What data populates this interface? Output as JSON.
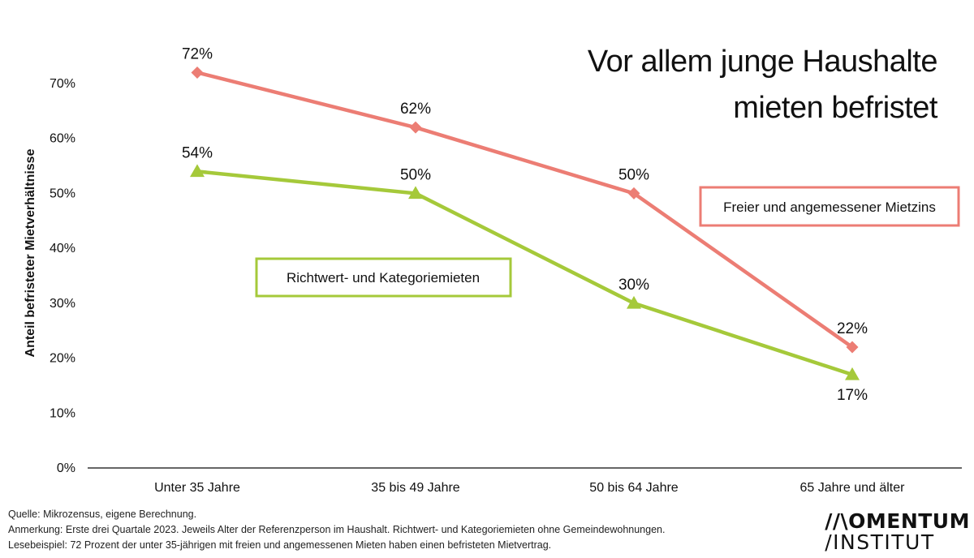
{
  "chart_data": {
    "type": "line",
    "title_lines": [
      "Vor allem junge Haushalte",
      "mieten befristet"
    ],
    "ylabel": "Anteil befristeter Mietverhältnisse",
    "xlabel": "",
    "ylim": [
      0,
      70
    ],
    "yticks": [
      0,
      10,
      20,
      30,
      40,
      50,
      60,
      70
    ],
    "ytick_labels": [
      "0%",
      "10%",
      "20%",
      "30%",
      "40%",
      "50%",
      "60%",
      "70%"
    ],
    "categories": [
      "Unter 35 Jahre",
      "35 bis 49 Jahre",
      "50 bis 64 Jahre",
      "65 Jahre und älter"
    ],
    "series": [
      {
        "name": "Freier und angemessener Mietzins",
        "color": "#ec7d74",
        "marker": "diamond",
        "values": [
          72,
          62,
          50,
          22
        ],
        "labels": [
          "72%",
          "62%",
          "50%",
          "22%"
        ]
      },
      {
        "name": "Richtwert- und Kategoriemieten",
        "color": "#a5c93a",
        "marker": "triangle",
        "values": [
          54,
          50,
          30,
          17
        ],
        "labels": [
          "54%",
          "50%",
          "30%",
          "17%"
        ]
      }
    ],
    "grid": false
  },
  "footer": {
    "source": "Quelle: Mikrozensus, eigene Berechnung.",
    "note": "Anmerkung: Erste drei Quartale 2023. Jeweils Alter der Referenzperson im Haushalt. Richtwert- und Kategoriemieten ohne Gemeindewohnungen.",
    "example": "Lesebeispiel: 72 Prozent der unter 35-jährigen mit freien und angemessenen Mieten haben einen befristeten Mietvertrag."
  },
  "logo": {
    "line1": "//\\OMENTUM",
    "line2": "/INSTITUT"
  }
}
